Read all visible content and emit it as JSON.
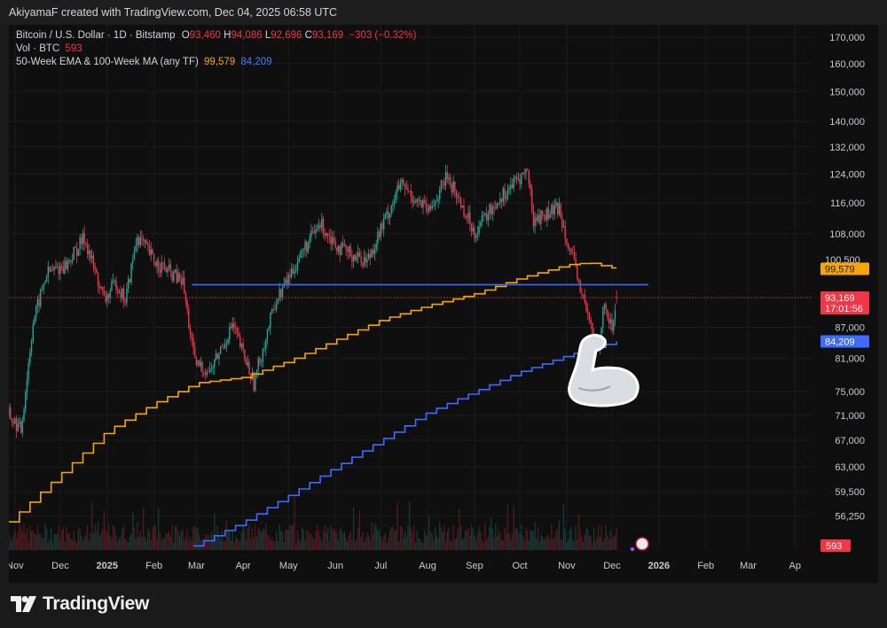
{
  "header": {
    "text": "AkiyamaF created with TradingView.com, Dec 04, 2025 06:58 UTC"
  },
  "legend": {
    "symbol": "Bitcoin / U.S. Dollar · 1D · Bitstamp",
    "o_label": "O",
    "o": "93,460",
    "h_label": "H",
    "h": "94,086",
    "l_label": "L",
    "l": "92,696",
    "c_label": "C",
    "c": "93,169",
    "change": "−303 (−0.32%)",
    "vol_label": "Vol · BTC",
    "vol": "593",
    "ma_label": "50-Week EMA & 100-Week MA (any TF)",
    "ema": "99,579",
    "ma": "84,209"
  },
  "price_tags": {
    "ema_value": "99,579",
    "price_value": "93,169",
    "countdown": "17:01:56",
    "ma_value": "84,209",
    "volume_value": "593",
    "hidden_tag": "100,500"
  },
  "brand": {
    "name": "TradingView"
  },
  "colors": {
    "candle_up": "#26a69a",
    "candle_down": "#f23645",
    "ema": "#f7a600",
    "ma": "#3d6bff",
    "level_line": "#3d6bff",
    "background": "#0f0f0f"
  },
  "chart_data": {
    "type": "candlestick",
    "symbol": "Bitcoin / U.S. Dollar",
    "interval": "1D",
    "exchange": "Bitstamp",
    "y_scale": "log",
    "ylim": [
      52000,
      175000
    ],
    "y_ticks": [
      56250,
      59500,
      63000,
      67000,
      71000,
      75000,
      81000,
      87000,
      93169,
      108000,
      116000,
      124000,
      132000,
      140000,
      150000,
      160000,
      170000
    ],
    "y_tick_labels": [
      "56,250",
      "59,500",
      "63,000",
      "67,000",
      "71,000",
      "75,000",
      "81,000",
      "87,000",
      "93,169",
      "108,000",
      "116,000",
      "124,000",
      "132,000",
      "140,000",
      "150,000",
      "160,000",
      "170,000"
    ],
    "x_labels": [
      "Nov",
      "Dec",
      "2025",
      "Feb",
      "Mar",
      "Apr",
      "May",
      "Jun",
      "Jul",
      "Aug",
      "Sep",
      "Oct",
      "Nov",
      "Dec",
      "2026",
      "Feb",
      "Mar",
      "Ap"
    ],
    "x_label_dates": [
      "2024-11-01",
      "2024-12-01",
      "2025-01-01",
      "2025-02-01",
      "2025-03-01",
      "2025-04-01",
      "2025-05-01",
      "2025-06-01",
      "2025-07-01",
      "2025-08-01",
      "2025-09-01",
      "2025-10-01",
      "2025-11-01",
      "2025-12-01",
      "2026-01-01",
      "2026-02-01",
      "2026-03-01",
      "2026-04-01"
    ],
    "x_range": [
      "2024-10-28",
      "2026-04-12"
    ],
    "price_path": [
      {
        "date": "2024-10-28",
        "close": 71000
      },
      {
        "date": "2024-11-05",
        "close": 68500
      },
      {
        "date": "2024-11-13",
        "close": 88000
      },
      {
        "date": "2024-11-22",
        "close": 98500
      },
      {
        "date": "2024-12-05",
        "close": 100500
      },
      {
        "date": "2024-12-17",
        "close": 107000
      },
      {
        "date": "2024-12-30",
        "close": 92500
      },
      {
        "date": "2025-01-07",
        "close": 96500
      },
      {
        "date": "2025-01-13",
        "close": 92500
      },
      {
        "date": "2025-01-21",
        "close": 107500
      },
      {
        "date": "2025-02-01",
        "close": 101500
      },
      {
        "date": "2025-02-20",
        "close": 96500
      },
      {
        "date": "2025-02-28",
        "close": 80000
      },
      {
        "date": "2025-03-10",
        "close": 78500
      },
      {
        "date": "2025-03-25",
        "close": 87500
      },
      {
        "date": "2025-04-08",
        "close": 76500
      },
      {
        "date": "2025-04-22",
        "close": 92000
      },
      {
        "date": "2025-05-10",
        "close": 103500
      },
      {
        "date": "2025-05-22",
        "close": 110500
      },
      {
        "date": "2025-06-05",
        "close": 104000
      },
      {
        "date": "2025-06-22",
        "close": 101500
      },
      {
        "date": "2025-07-14",
        "close": 121000
      },
      {
        "date": "2025-08-02",
        "close": 113500
      },
      {
        "date": "2025-08-14",
        "close": 123500
      },
      {
        "date": "2025-09-01",
        "close": 108500
      },
      {
        "date": "2025-09-18",
        "close": 117500
      },
      {
        "date": "2025-10-06",
        "close": 125000
      },
      {
        "date": "2025-10-10",
        "close": 111500
      },
      {
        "date": "2025-10-27",
        "close": 114500
      },
      {
        "date": "2025-11-04",
        "close": 103000
      },
      {
        "date": "2025-11-21",
        "close": 82500
      },
      {
        "date": "2025-11-26",
        "close": 91500
      },
      {
        "date": "2025-12-01",
        "close": 86500
      },
      {
        "date": "2025-12-04",
        "close": 93169
      }
    ],
    "last_candle": {
      "date": "2025-12-04",
      "open": 93460,
      "high": 94086,
      "low": 92696,
      "close": 93169
    },
    "series": [
      {
        "name": "50-Week EMA",
        "last": 99579,
        "points": [
          {
            "date": "2024-10-28",
            "value": 55500
          },
          {
            "date": "2024-12-01",
            "value": 62000
          },
          {
            "date": "2025-01-01",
            "value": 68500
          },
          {
            "date": "2025-02-01",
            "value": 73000
          },
          {
            "date": "2025-03-01",
            "value": 76500
          },
          {
            "date": "2025-04-01",
            "value": 77500
          },
          {
            "date": "2025-05-01",
            "value": 80500
          },
          {
            "date": "2025-06-01",
            "value": 84500
          },
          {
            "date": "2025-07-01",
            "value": 88500
          },
          {
            "date": "2025-08-01",
            "value": 91500
          },
          {
            "date": "2025-09-01",
            "value": 94000
          },
          {
            "date": "2025-10-01",
            "value": 97500
          },
          {
            "date": "2025-11-01",
            "value": 100500
          },
          {
            "date": "2025-11-15",
            "value": 101000
          },
          {
            "date": "2025-12-04",
            "value": 99579
          }
        ]
      },
      {
        "name": "100-Week MA",
        "last": 84209,
        "points": [
          {
            "date": "2025-02-27",
            "value": 52500
          },
          {
            "date": "2025-04-01",
            "value": 55500
          },
          {
            "date": "2025-05-01",
            "value": 59000
          },
          {
            "date": "2025-06-01",
            "value": 63000
          },
          {
            "date": "2025-07-01",
            "value": 67000
          },
          {
            "date": "2025-08-01",
            "value": 71500
          },
          {
            "date": "2025-09-01",
            "value": 75000
          },
          {
            "date": "2025-10-01",
            "value": 78500
          },
          {
            "date": "2025-11-01",
            "value": 81500
          },
          {
            "date": "2025-12-04",
            "value": 84209
          }
        ]
      }
    ],
    "horizontal_lines": [
      {
        "from": "2025-02-26",
        "to": "2025-12-25",
        "value": 96000
      }
    ],
    "volume": {
      "unit": "BTC",
      "last": 593
    }
  }
}
